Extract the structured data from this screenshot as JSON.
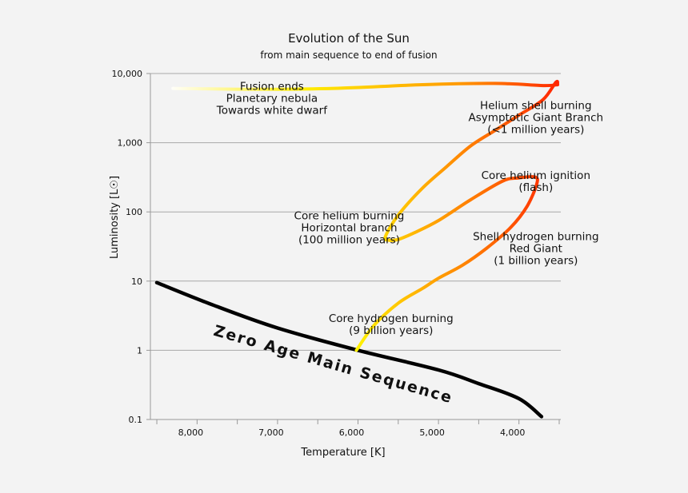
{
  "chart_data": {
    "type": "line",
    "title": "Evolution of the Sun",
    "subtitle": "from main sequence to end of fusion",
    "xlabel": "Temperature [K]",
    "ylabel": "Luminosity [L☉]",
    "x_axis_reversed": true,
    "y_scale": "log",
    "xlim": [
      8580,
      3480
    ],
    "ylim": [
      0.1,
      10000
    ],
    "x_ticks": [
      {
        "value": 8000,
        "label": "8,000"
      },
      {
        "value": 7000,
        "label": "7,000"
      },
      {
        "value": 6000,
        "label": "6,000"
      },
      {
        "value": 5000,
        "label": "5,000"
      },
      {
        "value": 4000,
        "label": "4,000"
      }
    ],
    "y_ticks": [
      {
        "value": 0.1,
        "label": "0.1"
      },
      {
        "value": 1,
        "label": "1"
      },
      {
        "value": 10,
        "label": "10"
      },
      {
        "value": 100,
        "label": "100"
      },
      {
        "value": 1000,
        "label": "1,000"
      },
      {
        "value": 10000,
        "label": "10,000"
      }
    ],
    "grid": true,
    "main_sequence": {
      "label": "Zero Age Main Sequence",
      "color": "#000000",
      "points": [
        [
          8500,
          9.5
        ],
        [
          7800,
          4.5
        ],
        [
          7000,
          2.1
        ],
        [
          6000,
          1.0
        ],
        [
          5000,
          0.52
        ],
        [
          4500,
          0.33
        ],
        [
          4000,
          0.2
        ],
        [
          3720,
          0.11
        ]
      ]
    },
    "sun_track": {
      "color_start": "#ffff00",
      "color_end": "#ff2200",
      "points": [
        [
          6020,
          1.0
        ],
        [
          5800,
          2.3
        ],
        [
          5500,
          4.8
        ],
        [
          5200,
          7.8
        ],
        [
          5000,
          11
        ],
        [
          4700,
          17
        ],
        [
          4400,
          30
        ],
        [
          4100,
          60
        ],
        [
          3900,
          120
        ],
        [
          3780,
          250
        ],
        [
          3800,
          320
        ],
        [
          4000,
          310
        ],
        [
          4200,
          280
        ],
        [
          4600,
          150
        ],
        [
          5000,
          75
        ],
        [
          5300,
          50
        ],
        [
          5500,
          40
        ],
        [
          5620,
          39
        ],
        [
          5660,
          44
        ],
        [
          5500,
          90
        ],
        [
          5200,
          220
        ],
        [
          4900,
          450
        ],
        [
          4600,
          900
        ],
        [
          4300,
          1500
        ],
        [
          4000,
          2500
        ],
        [
          3700,
          4200
        ],
        [
          3540,
          7500
        ],
        [
          3520,
          6900
        ],
        [
          3700,
          6700
        ],
        [
          4300,
          7200
        ],
        [
          5200,
          6900
        ],
        [
          6300,
          6100
        ],
        [
          7300,
          5900
        ],
        [
          8300,
          6100
        ]
      ]
    },
    "annotations": [
      {
        "lines": [
          "Fusion ends",
          "Planetary nebula",
          "Towards white dwarf"
        ],
        "x": 7070,
        "y": 5800
      },
      {
        "lines": [
          "Helium shell burning",
          "Asymptotic Giant Branch",
          "(<1 million years)"
        ],
        "x": 3790,
        "y": 3050
      },
      {
        "lines": [
          "Core helium ignition",
          "(flash)"
        ],
        "x": 3790,
        "y": 300
      },
      {
        "lines": [
          "Core helium burning",
          "Horizontal branch",
          "(100 million years)"
        ],
        "x": 6110,
        "y": 78
      },
      {
        "lines": [
          "Shell hydrogen burning",
          "Red Giant",
          "(1 billion years)"
        ],
        "x": 3790,
        "y": 39
      },
      {
        "lines": [
          "Core hydrogen burning",
          "(9 billion years)"
        ],
        "x": 5590,
        "y": 2.55
      }
    ]
  }
}
